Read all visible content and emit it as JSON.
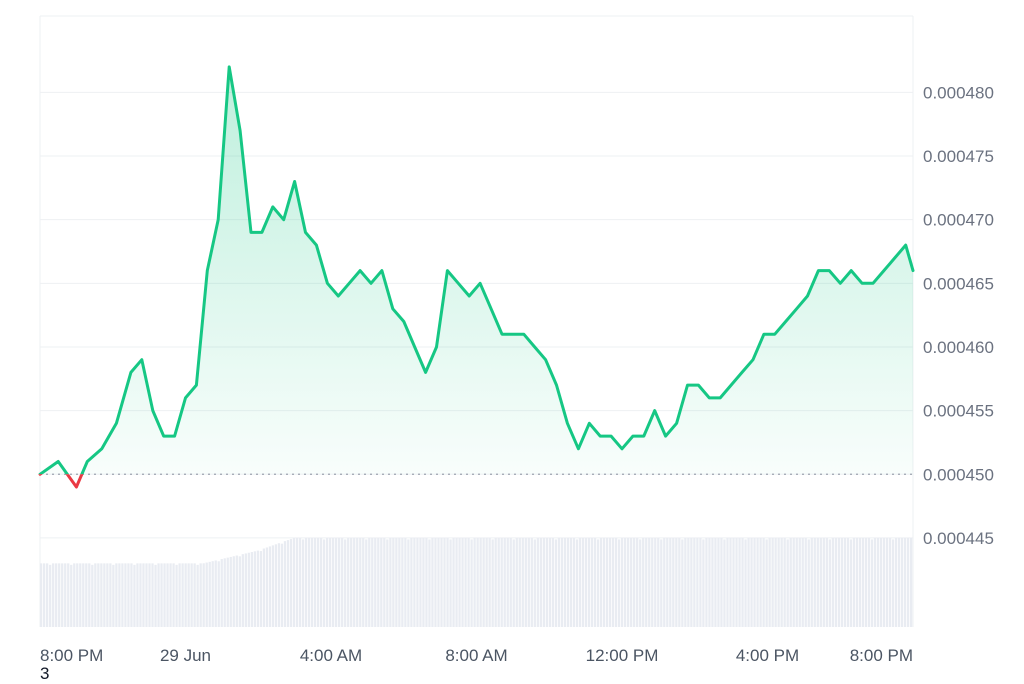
{
  "chart_data": {
    "type": "line",
    "title": "",
    "xlabel": "",
    "ylabel": "",
    "x_tick_labels": [
      "8:00 PM",
      "29 Jun",
      "4:00 AM",
      "8:00 AM",
      "12:00 PM",
      "4:00 PM",
      "8:00 PM"
    ],
    "y_tick_labels": [
      "0.000480",
      "0.000475",
      "0.000470",
      "0.000465",
      "0.000460",
      "0.000455",
      "0.000450",
      "0.000445"
    ],
    "ylim": [
      0.000438,
      0.000486
    ],
    "baseline": 0.00045,
    "grid": true,
    "colors": {
      "above_baseline": "#16c784",
      "below_baseline": "#ea3943",
      "volume": "#e9ecf2",
      "grid": "#eef0f3",
      "baseline_line": "#9ca3af"
    },
    "series": [
      {
        "x_hours": [
          0,
          0.5,
          1,
          1.3,
          1.7,
          2.1,
          2.5,
          2.8,
          3.1,
          3.4,
          3.7,
          4,
          4.3,
          4.6,
          4.9,
          5.2,
          5.5,
          5.8,
          6.1,
          6.4,
          6.7,
          7,
          7.3,
          7.6,
          7.9,
          8.2,
          8.5,
          8.8,
          9.1,
          9.4,
          9.7,
          10,
          10.3,
          10.6,
          10.9,
          11.2,
          11.5,
          11.8,
          12.1,
          12.4,
          12.7,
          13,
          13.3,
          13.6,
          13.9,
          14.2,
          14.5,
          14.8,
          15.1,
          15.4,
          15.7,
          16,
          16.3,
          16.6,
          16.9,
          17.2,
          17.5,
          17.8,
          18.1,
          18.4,
          18.7,
          19,
          19.3,
          19.6,
          19.9,
          20.2,
          20.5,
          20.8,
          21.1,
          21.4,
          21.7,
          22,
          22.3,
          22.6,
          22.9,
          23.2,
          23.5,
          23.8,
          24
        ],
        "values": [
          0.00045,
          0.000451,
          0.000449,
          0.000451,
          0.000452,
          0.000454,
          0.000458,
          0.000459,
          0.000455,
          0.000453,
          0.000453,
          0.000456,
          0.000457,
          0.000466,
          0.00047,
          0.000482,
          0.000477,
          0.000469,
          0.000469,
          0.000471,
          0.00047,
          0.000473,
          0.000469,
          0.000468,
          0.000465,
          0.000464,
          0.000465,
          0.000466,
          0.000465,
          0.000466,
          0.000463,
          0.000462,
          0.00046,
          0.000458,
          0.00046,
          0.000466,
          0.000465,
          0.000464,
          0.000465,
          0.000463,
          0.000461,
          0.000461,
          0.000461,
          0.00046,
          0.000459,
          0.000457,
          0.000454,
          0.000452,
          0.000454,
          0.000453,
          0.000453,
          0.000452,
          0.000453,
          0.000453,
          0.000455,
          0.000453,
          0.000454,
          0.000457,
          0.000457,
          0.000456,
          0.000456,
          0.000457,
          0.000458,
          0.000459,
          0.000461,
          0.000461,
          0.000462,
          0.000463,
          0.000464,
          0.000466,
          0.000466,
          0.000465,
          0.000466,
          0.000465,
          0.000465,
          0.000466,
          0.000467,
          0.000468,
          0.000466
        ]
      }
    ],
    "volume": {
      "x_hours": [
        0,
        3,
        4.5,
        6,
        7,
        8,
        12,
        16,
        18,
        21,
        22,
        24
      ],
      "values": [
        0.000443,
        0.000443,
        0.000443,
        0.000444,
        0.000445,
        0.000445,
        0.000445,
        0.000445,
        0.000445,
        0.000445,
        0.000445,
        0.000445
      ]
    }
  },
  "footnote": "3"
}
